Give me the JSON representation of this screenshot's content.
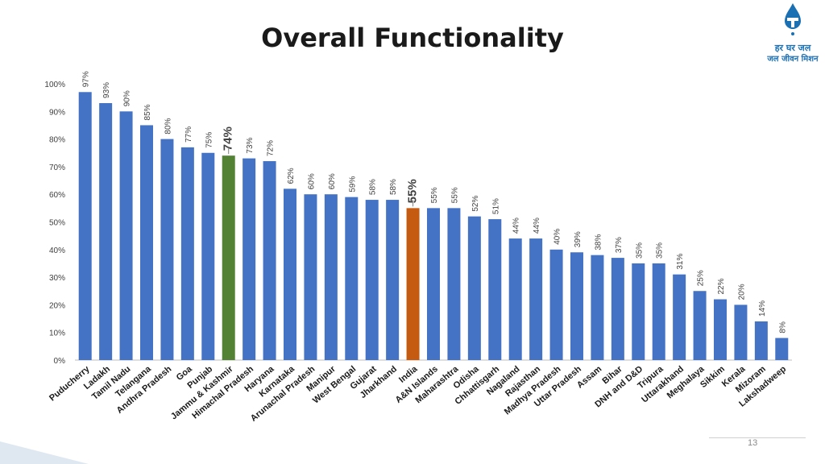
{
  "page": {
    "title": "Overall Functionality",
    "page_number": "13"
  },
  "logo": {
    "line1": "हर घर जल",
    "line2": "जल जीवन मिशन",
    "color": "#1b6fb3"
  },
  "colors": {
    "default_bar": "#4472C4",
    "highlight_state": "#548235",
    "highlight_india": "#C55A11"
  },
  "chart_data": {
    "type": "bar",
    "title": "Overall Functionality",
    "xlabel": "",
    "ylabel": "",
    "ylim": [
      0,
      100
    ],
    "y_ticks": [
      "0%",
      "10%",
      "20%",
      "30%",
      "40%",
      "50%",
      "60%",
      "70%",
      "80%",
      "90%",
      "100%"
    ],
    "y_tick_values": [
      0,
      10,
      20,
      30,
      40,
      50,
      60,
      70,
      80,
      90,
      100
    ],
    "grid": false,
    "categories": [
      "Puducherry",
      "Ladakh",
      "Tamil Nadu",
      "Telangana",
      "Andhra Pradesh",
      "Goa",
      "Punjab",
      "Jammu & Kashmir",
      "Himachal Pradesh",
      "Haryana",
      "Karnataka",
      "Arunachal Pradesh",
      "Manipur",
      "West Bengal",
      "Gujarat",
      "Jharkhand",
      "India",
      "A&N Islands",
      "Maharashtra",
      "Odisha",
      "Chhattisgarh",
      "Nagaland",
      "Rajasthan",
      "Madhya Pradesh",
      "Uttar Pradesh",
      "Assam",
      "Bihar",
      "DNH and D&D",
      "Tripura",
      "Uttarakhand",
      "Meghalaya",
      "Sikkim",
      "Kerala",
      "Mizoram",
      "Lakshadweep"
    ],
    "values": [
      97,
      93,
      90,
      85,
      80,
      77,
      75,
      74,
      73,
      72,
      62,
      60,
      60,
      59,
      58,
      58,
      55,
      55,
      55,
      52,
      51,
      44,
      44,
      40,
      39,
      38,
      37,
      35,
      35,
      31,
      25,
      22,
      20,
      14,
      8
    ],
    "labels": [
      "97%",
      "93%",
      "90%",
      "85%",
      "80%",
      "77%",
      "75%",
      "74%",
      "73%",
      "72%",
      "62%",
      "60%",
      "60%",
      "59%",
      "58%",
      "58%",
      "55%",
      "55%",
      "55%",
      "52%",
      "51%",
      "44%",
      "44%",
      "40%",
      "39%",
      "38%",
      "37%",
      "35%",
      "35%",
      "31%",
      "25%",
      "22%",
      "20%",
      "14%",
      "8%"
    ],
    "highlights": {
      "Jammu & Kashmir": "#548235",
      "India": "#C55A11"
    }
  }
}
